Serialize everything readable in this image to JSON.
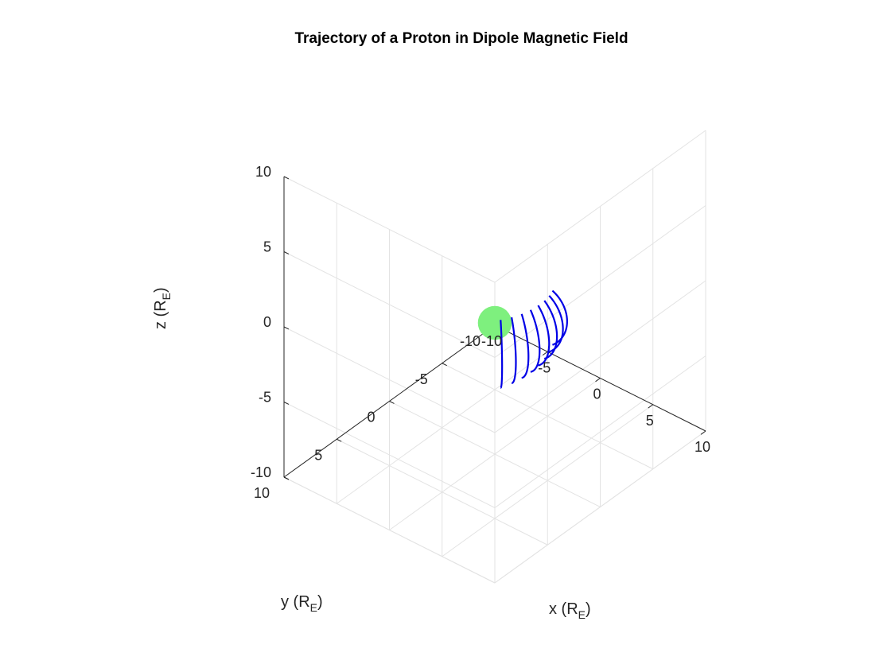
{
  "chart_data": {
    "type": "line",
    "title": "Trajectory of a Proton in Dipole Magnetic Field",
    "xlabel": {
      "base": "x (R",
      "sub": "E",
      "close": ")"
    },
    "ylabel": {
      "base": "y (R",
      "sub": "E",
      "close": ")"
    },
    "zlabel": {
      "base": "z (R",
      "sub": "E",
      "close": ")"
    },
    "xlim": [
      -10,
      10
    ],
    "ylim": [
      -10,
      10
    ],
    "zlim": [
      -10,
      10
    ],
    "xticks": [
      -10,
      -5,
      0,
      5,
      10
    ],
    "yticks": [
      -10,
      -5,
      0,
      5,
      10
    ],
    "zticks": [
      -10,
      -5,
      0,
      5,
      10
    ],
    "grid": true,
    "view": "3-D, azimuth -37.5°, elevation 30°",
    "earth": {
      "shape": "sphere",
      "radius": 1,
      "center": [
        0,
        0,
        0
      ],
      "color": "#7ef07e"
    },
    "trajectory": {
      "color": "#0000e6",
      "description": "bouncing and drifting dipole field lines",
      "L_shells": [
        5.6,
        5.8,
        6.0,
        6.2,
        6.4,
        6.6,
        6.8,
        7.0
      ],
      "longitudes_deg": [
        -15,
        -7,
        1,
        9,
        17,
        25,
        33,
        41
      ],
      "mirror_latitude_deg": 22
    }
  }
}
